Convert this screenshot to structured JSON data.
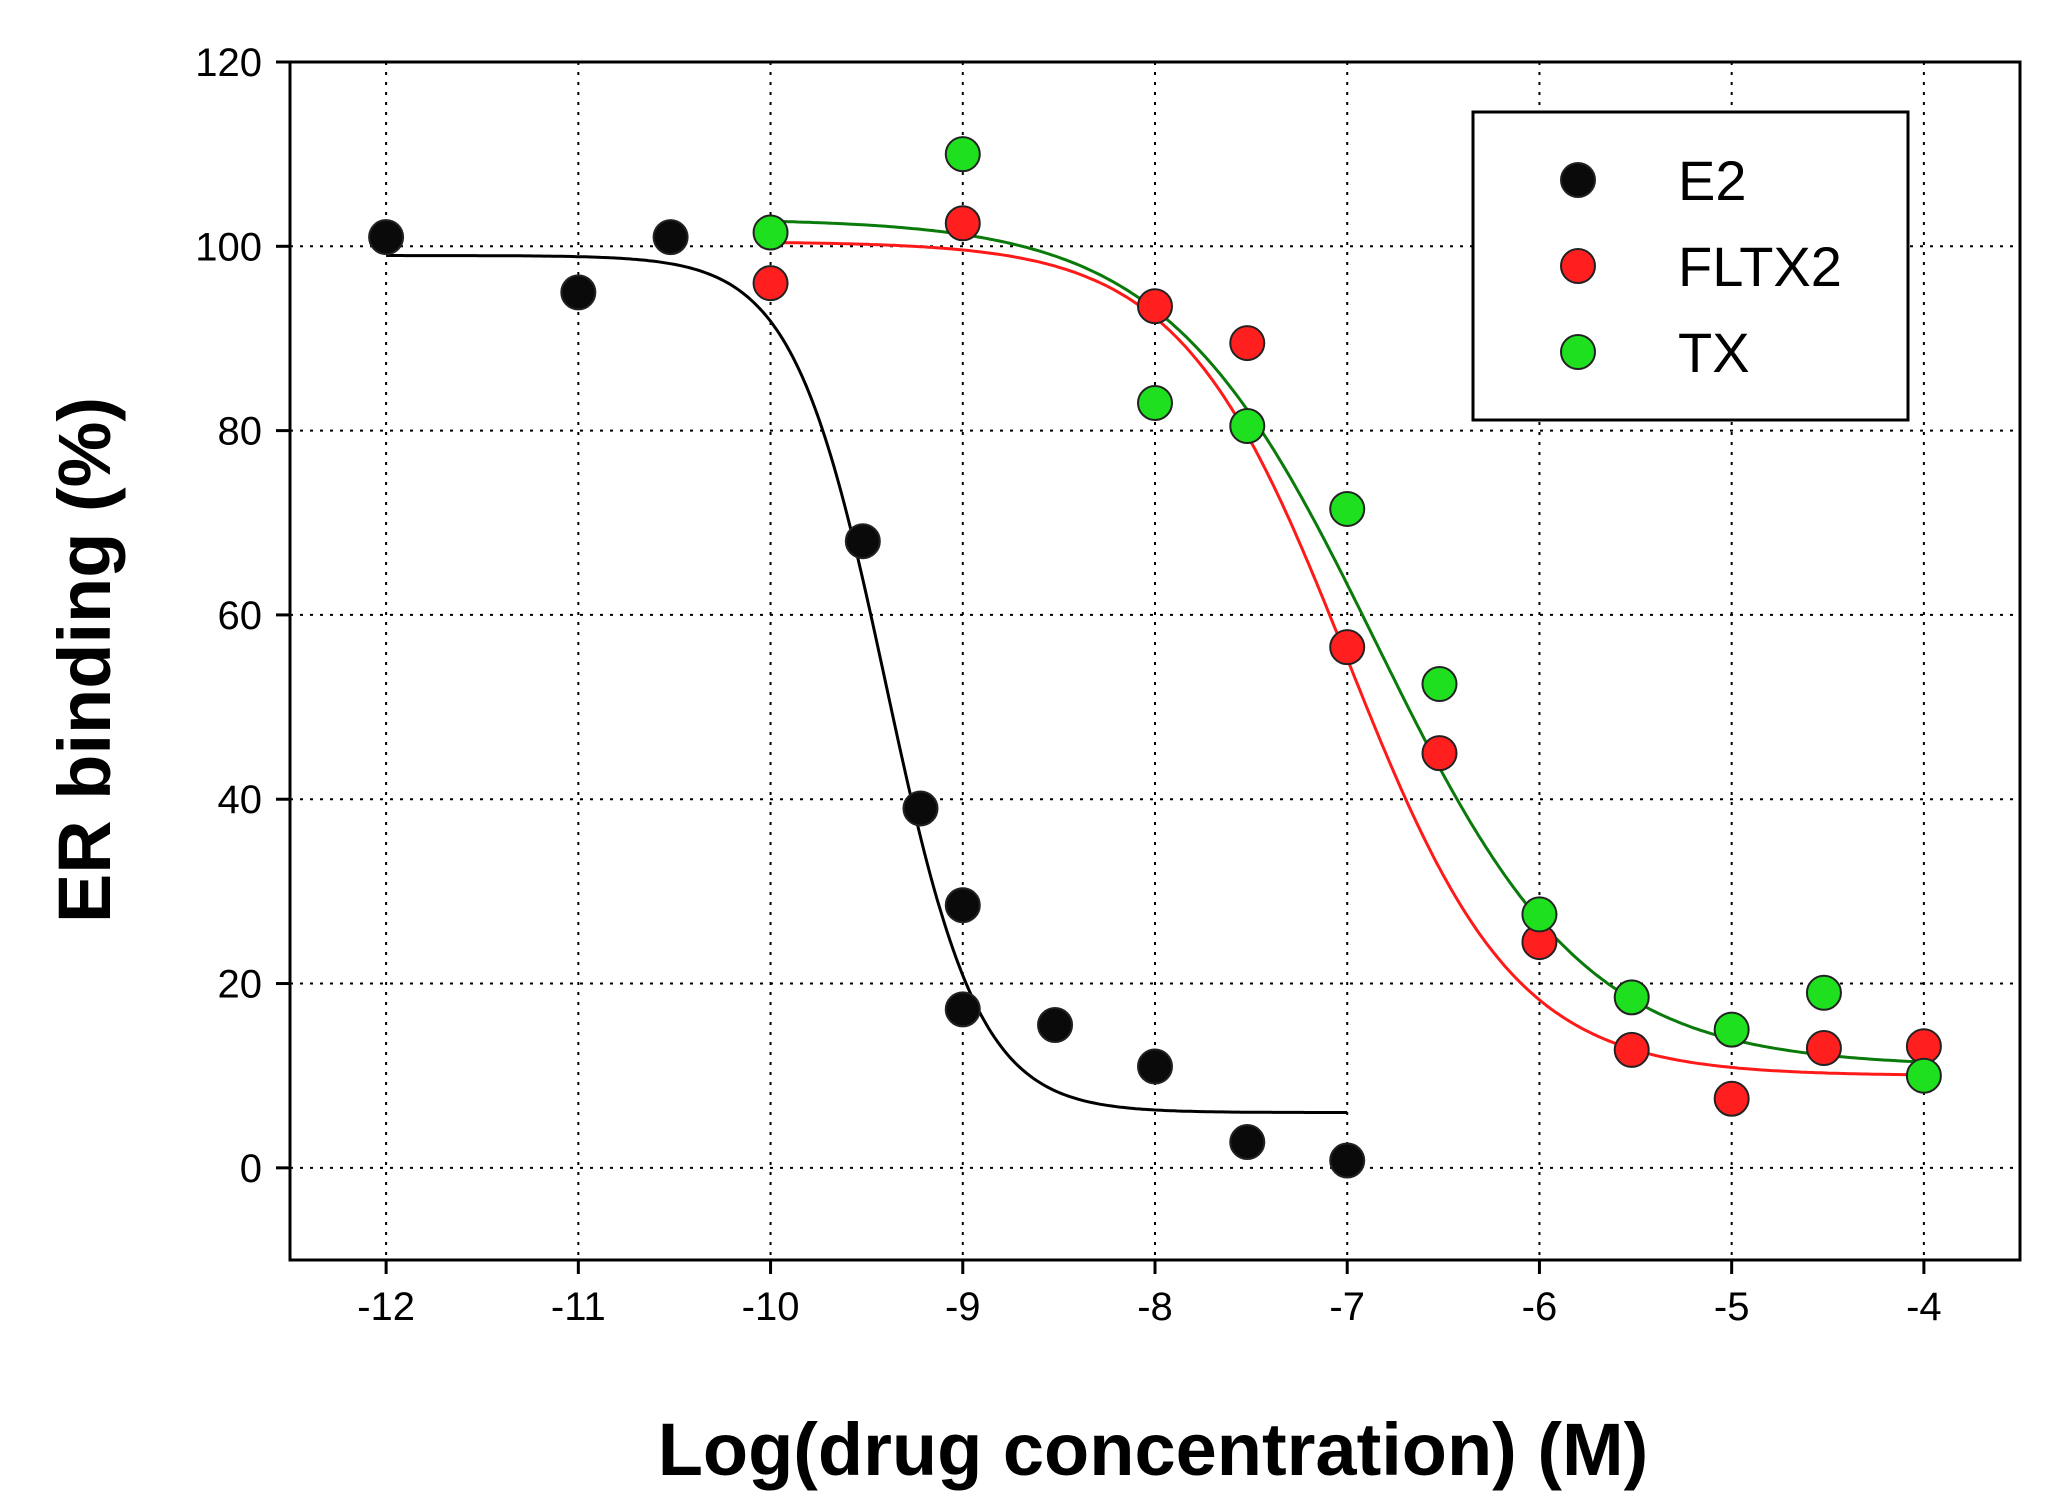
{
  "chart_data": {
    "type": "scatter",
    "title": "",
    "xlabel": "Log(drug concentration) (M)",
    "ylabel": "ER binding (%)",
    "xlim": [
      -12.5,
      -3.5
    ],
    "ylim": [
      -10,
      120
    ],
    "xticks": [
      -12,
      -11,
      -10,
      -9,
      -8,
      -7,
      -6,
      -5,
      -4
    ],
    "yticks": [
      0,
      20,
      40,
      60,
      80,
      100,
      120
    ],
    "xtick_labels": [
      "-12",
      "-11",
      "-10",
      "-9",
      "-8",
      "-7",
      "-6",
      "-5",
      "-4"
    ],
    "ytick_labels": [
      "0",
      "20",
      "40",
      "60",
      "80",
      "100",
      "120"
    ],
    "grid": true,
    "legend_position": "top-right",
    "series": [
      {
        "name": "E2",
        "color": "#000000",
        "marker_color": "#0a0a0a",
        "x": [
          -12,
          -11,
          -10.52,
          -9.52,
          -9.22,
          -9,
          -9,
          -8.52,
          -8,
          -7.52,
          -7
        ],
        "y": [
          101,
          95,
          101,
          68,
          39,
          28.5,
          17.2,
          15.5,
          11,
          2.8,
          0.8
        ],
        "fit": {
          "bottom": 6,
          "top": 99,
          "logec50": -9.4,
          "hill": -1.8,
          "x_range": [
            -12,
            -7
          ]
        }
      },
      {
        "name": "FLTX2",
        "color": "#ff1a1a",
        "marker_color": "#ff1f1f",
        "x": [
          -10,
          -9,
          -8,
          -7.52,
          -7,
          -6.52,
          -6,
          -5.52,
          -5,
          -4.52,
          -4
        ],
        "y": [
          96,
          102.5,
          93.5,
          89.5,
          56.5,
          45,
          24.5,
          12.8,
          7.5,
          13,
          13.2
        ],
        "fit": {
          "bottom": 10,
          "top": 100.5,
          "logec50": -7.0,
          "hill": -1.0,
          "x_range": [
            -10,
            -4
          ]
        }
      },
      {
        "name": "TX",
        "color": "#0a7a0a",
        "marker_color": "#1fe01f",
        "x": [
          -10,
          -9,
          -8,
          -7.52,
          -7,
          -6.52,
          -6,
          -5.52,
          -5,
          -4.52,
          -4
        ],
        "y": [
          101.5,
          110,
          83,
          80.5,
          71.5,
          52.5,
          27.5,
          18.5,
          15,
          19,
          10
        ],
        "fit": {
          "bottom": 11,
          "top": 103,
          "logec50": -6.85,
          "hill": -0.8,
          "x_range": [
            -10,
            -4
          ]
        }
      }
    ]
  }
}
